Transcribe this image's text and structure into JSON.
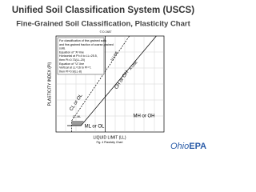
{
  "header": {
    "title": "Unified Soil Classification System (USCS)",
    "subtitle": "Fine-Grained Soil Classification, Plasticity Chart"
  },
  "chart": {
    "standard": "© D 2487",
    "y_axis_label": "PLASTICITY INDEX (PI)",
    "x_axis_label": "LIQUID LIMIT (LL)",
    "caption": "Fig. 4 Plasticity Chart",
    "legend_lines": [
      "For classification of fine-grained soils",
      "and fine-grained fraction of coarse-grained",
      "soils.",
      "Equation of \"A\"-line",
      "Horizontal at PI=4 to LL=25.5,",
      "then PI=0.73(LL-20)",
      "Equation of \"U\"-line",
      "Vertical at LL=16 to PI=7,",
      "then PI=0.9(LL-8)"
    ],
    "regions": {
      "cl_ol": "CL or OL",
      "ch_oh": "CH or OH",
      "mh_oh": "MH or OH",
      "ml_ol": "ML or OL",
      "cl_ml": "CL-ML"
    },
    "lines": {
      "u_line": "U-LINE",
      "a_line": "A-LINE"
    }
  },
  "logo": {
    "part1": "Ohio",
    "part2": "EPA"
  }
}
